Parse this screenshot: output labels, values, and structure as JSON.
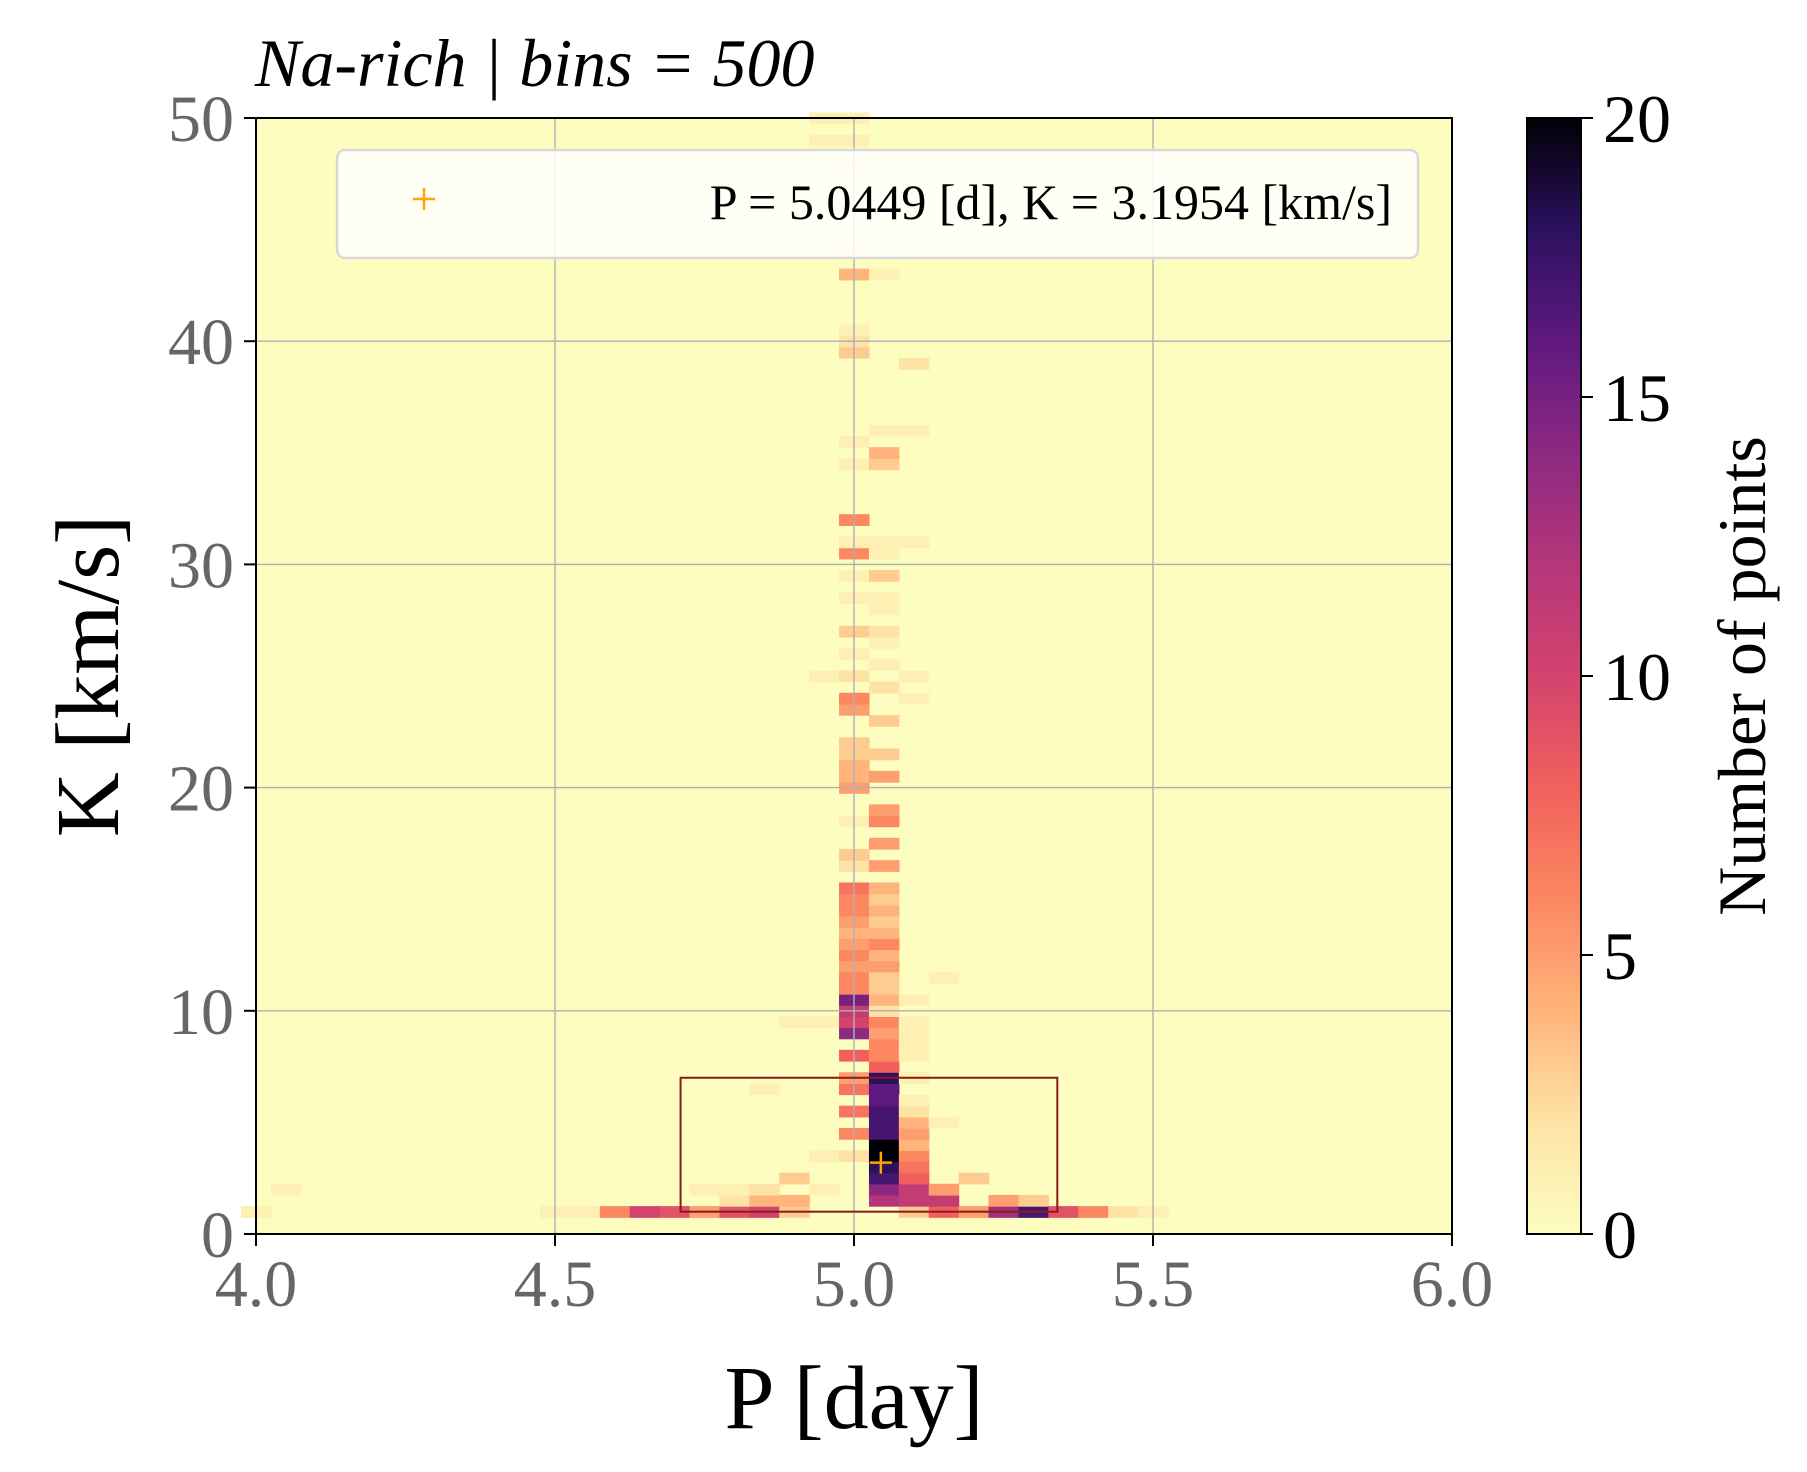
{
  "chart_data": {
    "type": "heatmap",
    "title": "Na-rich | bins = 500",
    "xlabel": "P [day]",
    "ylabel": "K [km/s]",
    "xlim": [
      4.0,
      6.0
    ],
    "ylim": [
      0,
      50
    ],
    "xticks": [
      "4.0",
      "4.5",
      "5.0",
      "5.5",
      "6.0"
    ],
    "yticks": [
      "0",
      "10",
      "20",
      "30",
      "40",
      "50"
    ],
    "grid": true,
    "colormap": "magma_r",
    "colorbar": {
      "label": "Number of points",
      "range": [
        0,
        20
      ],
      "ticks": [
        "0",
        "5",
        "10",
        "15",
        "20"
      ]
    },
    "marker": {
      "P": 5.0449,
      "K": 3.1954,
      "color": "#ffa500",
      "legend": "P = 5.0449 [d], K = 3.1954 [km/s]"
    },
    "legend_position": "top-right",
    "region_box": {
      "P_min": 4.71,
      "P_max": 5.34,
      "K_min": 1.0,
      "K_max": 7.0,
      "color": "#8b1a1a"
    },
    "cells": [
      [
        4.0,
        1.0,
        1
      ],
      [
        4.05,
        2.0,
        1
      ],
      [
        4.5,
        1.0,
        1
      ],
      [
        4.55,
        1.0,
        1
      ],
      [
        4.6,
        1.0,
        6
      ],
      [
        4.65,
        1.0,
        10
      ],
      [
        4.7,
        1.0,
        9
      ],
      [
        4.75,
        1.0,
        5
      ],
      [
        4.75,
        2.0,
        1
      ],
      [
        4.8,
        1.0,
        9
      ],
      [
        4.8,
        1.5,
        2
      ],
      [
        4.8,
        2.0,
        1
      ],
      [
        4.85,
        1.0,
        10
      ],
      [
        4.85,
        1.5,
        4
      ],
      [
        4.85,
        2.0,
        2
      ],
      [
        4.85,
        6.5,
        1
      ],
      [
        4.9,
        1.0,
        3
      ],
      [
        4.9,
        1.5,
        4
      ],
      [
        4.9,
        2.5,
        3
      ],
      [
        4.9,
        9.5,
        1
      ],
      [
        4.95,
        2.0,
        1
      ],
      [
        4.95,
        9.5,
        1
      ],
      [
        4.95,
        25.0,
        1
      ],
      [
        4.95,
        49.0,
        1
      ],
      [
        4.95,
        50.0,
        1
      ],
      [
        4.95,
        3.5,
        1
      ],
      [
        5.0,
        3.5,
        2
      ],
      [
        5.0,
        4.5,
        6
      ],
      [
        5.0,
        5.5,
        7
      ],
      [
        5.0,
        6.5,
        7
      ],
      [
        5.0,
        7.0,
        5
      ],
      [
        5.0,
        8.0,
        8
      ],
      [
        5.0,
        9.0,
        14
      ],
      [
        5.0,
        9.5,
        10
      ],
      [
        5.0,
        10.0,
        11
      ],
      [
        5.0,
        10.5,
        15
      ],
      [
        5.0,
        11.0,
        6
      ],
      [
        5.0,
        11.5,
        6
      ],
      [
        5.0,
        12.0,
        5
      ],
      [
        5.0,
        12.5,
        6
      ],
      [
        5.0,
        13.0,
        5
      ],
      [
        5.0,
        13.5,
        4
      ],
      [
        5.0,
        14.0,
        5
      ],
      [
        5.0,
        14.5,
        6
      ],
      [
        5.0,
        15.0,
        6
      ],
      [
        5.0,
        15.5,
        7
      ],
      [
        5.0,
        16.5,
        2
      ],
      [
        5.0,
        17.0,
        3
      ],
      [
        5.0,
        18.5,
        1
      ],
      [
        5.0,
        20.0,
        5
      ],
      [
        5.0,
        20.5,
        4
      ],
      [
        5.0,
        21.0,
        4
      ],
      [
        5.0,
        21.5,
        3
      ],
      [
        5.0,
        22.0,
        3
      ],
      [
        5.0,
        23.5,
        5
      ],
      [
        5.0,
        24.0,
        6
      ],
      [
        5.0,
        25.0,
        2
      ],
      [
        5.0,
        26.0,
        1
      ],
      [
        5.0,
        27.0,
        3
      ],
      [
        5.0,
        28.5,
        1
      ],
      [
        5.0,
        29.5,
        1
      ],
      [
        5.0,
        30.5,
        6
      ],
      [
        5.0,
        31.0,
        1
      ],
      [
        5.0,
        32.0,
        6
      ],
      [
        5.0,
        34.5,
        1
      ],
      [
        5.0,
        35.5,
        1
      ],
      [
        5.0,
        39.5,
        3
      ],
      [
        5.0,
        40.0,
        2
      ],
      [
        5.0,
        40.5,
        1
      ],
      [
        5.0,
        43.0,
        4
      ],
      [
        5.0,
        44.0,
        1
      ],
      [
        5.0,
        48.0,
        1
      ],
      [
        5.0,
        49.0,
        1
      ],
      [
        5.0,
        50.0,
        1
      ],
      [
        5.05,
        1.5,
        12
      ],
      [
        5.05,
        2.0,
        14
      ],
      [
        5.05,
        2.5,
        17
      ],
      [
        5.05,
        3.0,
        18
      ],
      [
        5.05,
        3.5,
        20
      ],
      [
        5.05,
        4.0,
        20
      ],
      [
        5.05,
        4.5,
        17
      ],
      [
        5.05,
        5.0,
        17
      ],
      [
        5.05,
        5.5,
        17
      ],
      [
        5.05,
        6.0,
        16
      ],
      [
        5.05,
        6.5,
        16
      ],
      [
        5.05,
        7.0,
        18
      ],
      [
        5.05,
        7.5,
        8
      ],
      [
        5.05,
        8.0,
        6
      ],
      [
        5.05,
        8.5,
        6
      ],
      [
        5.05,
        9.0,
        5
      ],
      [
        5.05,
        9.5,
        6
      ],
      [
        5.05,
        10.0,
        2
      ],
      [
        5.05,
        10.5,
        4
      ],
      [
        5.05,
        11.0,
        3
      ],
      [
        5.05,
        11.5,
        3
      ],
      [
        5.05,
        12.0,
        5
      ],
      [
        5.05,
        12.5,
        4
      ],
      [
        5.05,
        13.0,
        6
      ],
      [
        5.05,
        13.5,
        4
      ],
      [
        5.05,
        14.0,
        3
      ],
      [
        5.05,
        14.5,
        4
      ],
      [
        5.05,
        15.0,
        3
      ],
      [
        5.05,
        15.5,
        4
      ],
      [
        5.05,
        16.5,
        5
      ],
      [
        5.05,
        17.5,
        5
      ],
      [
        5.05,
        18.5,
        6
      ],
      [
        5.05,
        19.0,
        5
      ],
      [
        5.05,
        20.5,
        5
      ],
      [
        5.05,
        21.5,
        3
      ],
      [
        5.05,
        23.0,
        3
      ],
      [
        5.05,
        24.5,
        2
      ],
      [
        5.05,
        25.5,
        1
      ],
      [
        5.05,
        26.5,
        1
      ],
      [
        5.05,
        27.0,
        2
      ],
      [
        5.05,
        28.0,
        1
      ],
      [
        5.05,
        28.5,
        1
      ],
      [
        5.05,
        29.5,
        3
      ],
      [
        5.05,
        30.5,
        1
      ],
      [
        5.05,
        31.0,
        1
      ],
      [
        5.05,
        34.5,
        3
      ],
      [
        5.05,
        35.0,
        4
      ],
      [
        5.05,
        36.0,
        1
      ],
      [
        5.05,
        43.0,
        1
      ],
      [
        5.1,
        1.0,
        3
      ],
      [
        5.1,
        1.5,
        11
      ],
      [
        5.1,
        2.0,
        11
      ],
      [
        5.1,
        2.5,
        8
      ],
      [
        5.1,
        3.0,
        7
      ],
      [
        5.1,
        3.5,
        6
      ],
      [
        5.1,
        4.0,
        4
      ],
      [
        5.1,
        4.5,
        5
      ],
      [
        5.1,
        5.0,
        4
      ],
      [
        5.1,
        5.5,
        2
      ],
      [
        5.1,
        6.0,
        1
      ],
      [
        5.1,
        7.0,
        1
      ],
      [
        5.1,
        8.0,
        1
      ],
      [
        5.1,
        8.5,
        1
      ],
      [
        5.1,
        9.0,
        1
      ],
      [
        5.1,
        9.5,
        1
      ],
      [
        5.1,
        10.5,
        1
      ],
      [
        5.1,
        24.0,
        1
      ],
      [
        5.1,
        25.0,
        1
      ],
      [
        5.1,
        31.0,
        1
      ],
      [
        5.1,
        36.0,
        1
      ],
      [
        5.1,
        39.0,
        2
      ],
      [
        5.15,
        1.0,
        8
      ],
      [
        5.15,
        1.5,
        11
      ],
      [
        5.15,
        2.0,
        5
      ],
      [
        5.15,
        5.0,
        1
      ],
      [
        5.15,
        11.5,
        1
      ],
      [
        5.2,
        1.0,
        5
      ],
      [
        5.2,
        2.5,
        3
      ],
      [
        5.25,
        1.0,
        13
      ],
      [
        5.25,
        1.5,
        5
      ],
      [
        5.3,
        1.0,
        17
      ],
      [
        5.3,
        1.5,
        3
      ],
      [
        5.35,
        1.0,
        9
      ],
      [
        5.4,
        1.0,
        6
      ],
      [
        5.45,
        1.0,
        2
      ],
      [
        5.5,
        1.0,
        1
      ]
    ]
  }
}
